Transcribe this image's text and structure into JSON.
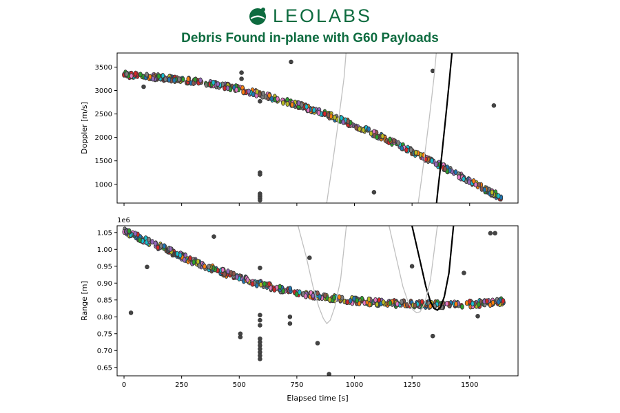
{
  "header": {
    "logo_text": "LEOLABS",
    "title": "Debris Found in-plane with G60 Payloads"
  },
  "colors": {
    "brand": "#0d6b3f",
    "scatter_outline": "#3a3a3a",
    "fit_main": "#000000",
    "fit_alt": "#c0c0c0",
    "point_palette": [
      "#1f77b4",
      "#ff7f0e",
      "#2ca02c",
      "#d62728",
      "#9467bd",
      "#8c564b",
      "#e377c2",
      "#7f7f7f",
      "#bcbd22",
      "#17becf"
    ]
  },
  "chart_data": [
    {
      "type": "scatter",
      "title": "",
      "xlabel": "",
      "ylabel": "Doppler [m/s]",
      "xlim": [
        -30,
        1710
      ],
      "ylim": [
        600,
        3800
      ],
      "x_ticks": [
        0,
        250,
        500,
        750,
        1000,
        1250,
        1500
      ],
      "x_tick_labels_shown": false,
      "y_ticks": [
        1000,
        1500,
        2000,
        2500,
        3000,
        3500
      ],
      "y_tick_labels": [
        "1000",
        "1500",
        "2000",
        "2500",
        "3000",
        "3500"
      ],
      "grid": false,
      "series": [
        {
          "style": "dense-track",
          "x": [
            0,
            50,
            100,
            150,
            200,
            250,
            300,
            350,
            400,
            450,
            500,
            550,
            600,
            650,
            700,
            750,
            800,
            850,
            900,
            950,
            1000,
            1050,
            1100,
            1150,
            1200,
            1250,
            1300,
            1350,
            1400,
            1450,
            1500,
            1550,
            1600,
            1650
          ],
          "y": [
            3340,
            3320,
            3300,
            3280,
            3260,
            3230,
            3200,
            3160,
            3120,
            3080,
            3030,
            2970,
            2910,
            2840,
            2770,
            2700,
            2620,
            2540,
            2450,
            2360,
            2260,
            2160,
            2050,
            1940,
            1820,
            1700,
            1580,
            1460,
            1330,
            1200,
            1070,
            940,
            810,
            700
          ],
          "spread": 50
        },
        {
          "style": "outliers",
          "points": [
            [
              510,
              3380
            ],
            [
              510,
              3250
            ],
            [
              590,
              2770
            ],
            [
              590,
              1250
            ],
            [
              590,
              1210
            ],
            [
              590,
              800
            ],
            [
              590,
              770
            ],
            [
              590,
              740
            ],
            [
              590,
              700
            ],
            [
              590,
              660
            ],
            [
              725,
              3610
            ],
            [
              1085,
              830
            ],
            [
              1340,
              3420
            ],
            [
              1605,
              2680
            ],
            [
              85,
              3080
            ]
          ]
        },
        {
          "style": "curve-black",
          "x": [
            1355,
            1362,
            1370,
            1378,
            1386,
            1394,
            1402,
            1410,
            1418,
            1425
          ],
          "y": [
            540,
            870,
            1220,
            1580,
            1950,
            2330,
            2720,
            3120,
            3530,
            3900
          ]
        },
        {
          "style": "curve-gray",
          "x": [
            878,
            890,
            903,
            916,
            929,
            942,
            955,
            965
          ],
          "y": [
            540,
            950,
            1380,
            1830,
            2300,
            2780,
            3280,
            3900
          ]
        },
        {
          "style": "curve-gray",
          "x": [
            1275,
            1287,
            1299,
            1311,
            1323,
            1335,
            1347,
            1357
          ],
          "y": [
            540,
            960,
            1400,
            1860,
            2340,
            2840,
            3360,
            3900
          ]
        }
      ]
    },
    {
      "type": "scatter",
      "title": "",
      "xlabel": "Elapsed time [s]",
      "ylabel": "Range [m]",
      "offset_text": "1e6",
      "xlim": [
        -30,
        1710
      ],
      "ylim": [
        0.625,
        1.07
      ],
      "x_ticks": [
        0,
        250,
        500,
        750,
        1000,
        1250,
        1500
      ],
      "x_tick_labels": [
        "0",
        "250",
        "500",
        "750",
        "1000",
        "1250",
        "1500"
      ],
      "y_ticks": [
        0.65,
        0.7,
        0.75,
        0.8,
        0.85,
        0.9,
        0.95,
        1.0,
        1.05
      ],
      "y_tick_labels": [
        "0.65",
        "0.70",
        "0.75",
        "0.80",
        "0.85",
        "0.90",
        "0.95",
        "1.00",
        "1.05"
      ],
      "grid": false,
      "series": [
        {
          "style": "dense-track",
          "x": [
            0,
            50,
            100,
            150,
            200,
            250,
            300,
            350,
            400,
            450,
            500,
            550,
            600,
            650,
            700,
            750,
            800,
            850,
            900,
            950,
            1000,
            1050,
            1100,
            1150,
            1200,
            1250,
            1300,
            1350,
            1400,
            1450,
            1500,
            1550,
            1600,
            1650
          ],
          "y": [
            1.055,
            1.04,
            1.025,
            1.01,
            0.995,
            0.98,
            0.965,
            0.952,
            0.94,
            0.928,
            0.917,
            0.906,
            0.896,
            0.887,
            0.879,
            0.872,
            0.866,
            0.861,
            0.856,
            0.852,
            0.848,
            0.845,
            0.842,
            0.84,
            0.839,
            0.838,
            0.837,
            0.836,
            0.836,
            0.837,
            0.838,
            0.84,
            0.843,
            0.847
          ],
          "spread": 0.008
        },
        {
          "style": "outliers",
          "points": [
            [
              30,
              0.812
            ],
            [
              100,
              0.948
            ],
            [
              390,
              1.038
            ],
            [
              505,
              0.74
            ],
            [
              505,
              0.75
            ],
            [
              590,
              0.945
            ],
            [
              590,
              0.805
            ],
            [
              590,
              0.79
            ],
            [
              590,
              0.775
            ],
            [
              590,
              0.735
            ],
            [
              590,
              0.725
            ],
            [
              590,
              0.715
            ],
            [
              590,
              0.705
            ],
            [
              590,
              0.695
            ],
            [
              590,
              0.685
            ],
            [
              590,
              0.675
            ],
            [
              720,
              0.8
            ],
            [
              720,
              0.78
            ],
            [
              805,
              0.975
            ],
            [
              840,
              0.722
            ],
            [
              890,
              0.63
            ],
            [
              1340,
              0.743
            ],
            [
              1475,
              0.93
            ],
            [
              1535,
              0.802
            ],
            [
              1590,
              1.048
            ],
            [
              1610,
              1.048
            ],
            [
              1250,
              0.95
            ]
          ]
        },
        {
          "style": "curve-black",
          "x": [
            1250,
            1280,
            1310,
            1330,
            1345,
            1360,
            1375,
            1390,
            1410,
            1430
          ],
          "y": [
            1.07,
            0.98,
            0.89,
            0.845,
            0.825,
            0.82,
            0.83,
            0.86,
            0.93,
            1.07
          ]
        },
        {
          "style": "curve-gray",
          "x": [
            755,
            790,
            820,
            845,
            865,
            880,
            895,
            915,
            940,
            965
          ],
          "y": [
            1.07,
            0.98,
            0.89,
            0.83,
            0.795,
            0.78,
            0.79,
            0.83,
            0.91,
            1.07
          ]
        },
        {
          "style": "curve-gray",
          "x": [
            1150,
            1180,
            1210,
            1235,
            1255,
            1270,
            1285,
            1305,
            1330,
            1360
          ],
          "y": [
            1.07,
            0.98,
            0.89,
            0.84,
            0.82,
            0.812,
            0.815,
            0.84,
            0.91,
            1.07
          ]
        }
      ]
    }
  ]
}
